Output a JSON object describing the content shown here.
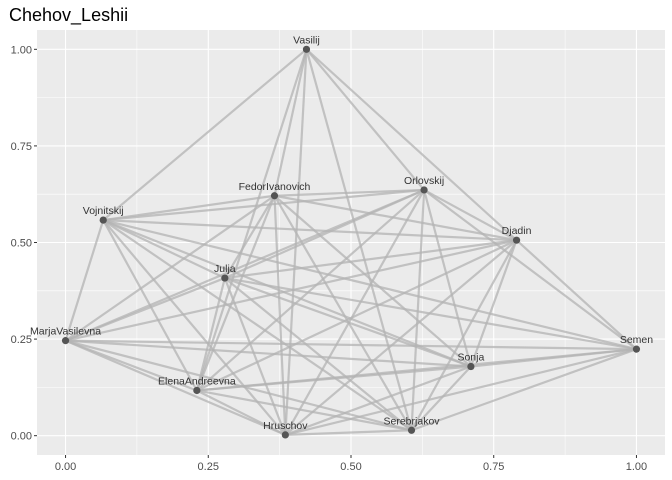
{
  "chart_data": {
    "type": "scatter",
    "title": "Chehov_Leshii",
    "xlabel": "",
    "ylabel": "",
    "xlim": [
      -0.05,
      1.05
    ],
    "ylim": [
      -0.05,
      1.05
    ],
    "x_ticks": [
      0,
      0.25,
      0.5,
      0.75,
      1
    ],
    "x_tick_labels": [
      "0.00",
      "0.25",
      "0.50",
      "0.75",
      "1.00"
    ],
    "y_ticks": [
      0,
      0.25,
      0.5,
      0.75,
      1
    ],
    "y_tick_labels": [
      "0.00",
      "0.25",
      "0.50",
      "0.75",
      "1.00"
    ],
    "grid": true,
    "panel_color": "#ebebeb",
    "grid_color": "#ffffff",
    "edge_color": "#b3b3b3",
    "node_color": "#555555",
    "nodes": [
      {
        "label": "Vasilij",
        "x": 0.422,
        "y": 1.0
      },
      {
        "label": "FedorIvanovich",
        "x": 0.366,
        "y": 0.621
      },
      {
        "label": "Orlovskij",
        "x": 0.628,
        "y": 0.636
      },
      {
        "label": "Vojnitskij",
        "x": 0.066,
        "y": 0.558
      },
      {
        "label": "Djadin",
        "x": 0.79,
        "y": 0.506
      },
      {
        "label": "Julja",
        "x": 0.279,
        "y": 0.408
      },
      {
        "label": "MarjaVasilevna",
        "x": 0.0,
        "y": 0.246
      },
      {
        "label": "Semen",
        "x": 1.0,
        "y": 0.224
      },
      {
        "label": "Sonja",
        "x": 0.71,
        "y": 0.179
      },
      {
        "label": "ElenaAndreevna",
        "x": 0.23,
        "y": 0.117
      },
      {
        "label": "Hruschov",
        "x": 0.385,
        "y": 0.002
      },
      {
        "label": "Serebrjakov",
        "x": 0.606,
        "y": 0.014
      }
    ],
    "edges": [
      [
        0,
        1
      ],
      [
        0,
        2
      ],
      [
        0,
        3
      ],
      [
        0,
        4
      ],
      [
        0,
        9
      ],
      [
        0,
        10
      ],
      [
        0,
        11
      ],
      [
        1,
        2
      ],
      [
        1,
        3
      ],
      [
        1,
        4
      ],
      [
        1,
        5
      ],
      [
        1,
        6
      ],
      [
        1,
        8
      ],
      [
        1,
        9
      ],
      [
        1,
        10
      ],
      [
        1,
        11
      ],
      [
        2,
        3
      ],
      [
        2,
        4
      ],
      [
        2,
        5
      ],
      [
        2,
        6
      ],
      [
        2,
        8
      ],
      [
        2,
        9
      ],
      [
        2,
        10
      ],
      [
        2,
        11
      ],
      [
        2,
        7
      ],
      [
        3,
        4
      ],
      [
        3,
        5
      ],
      [
        3,
        6
      ],
      [
        3,
        8
      ],
      [
        3,
        9
      ],
      [
        3,
        10
      ],
      [
        3,
        11
      ],
      [
        3,
        7
      ],
      [
        4,
        5
      ],
      [
        4,
        6
      ],
      [
        4,
        7
      ],
      [
        4,
        8
      ],
      [
        4,
        9
      ],
      [
        4,
        10
      ],
      [
        4,
        11
      ],
      [
        5,
        6
      ],
      [
        5,
        8
      ],
      [
        5,
        9
      ],
      [
        5,
        10
      ],
      [
        5,
        11
      ],
      [
        5,
        7
      ],
      [
        6,
        7
      ],
      [
        6,
        8
      ],
      [
        6,
        9
      ],
      [
        6,
        10
      ],
      [
        6,
        11
      ],
      [
        7,
        8
      ],
      [
        7,
        9
      ],
      [
        7,
        10
      ],
      [
        7,
        11
      ],
      [
        8,
        9
      ],
      [
        8,
        10
      ],
      [
        8,
        11
      ],
      [
        9,
        10
      ],
      [
        9,
        11
      ],
      [
        10,
        11
      ]
    ]
  }
}
